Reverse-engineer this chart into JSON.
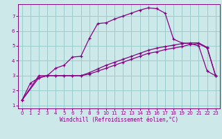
{
  "background_color": "#cce8e8",
  "grid_color": "#99cccc",
  "line_color": "#880088",
  "marker_color": "#880088",
  "xlim": [
    -0.5,
    23.5
  ],
  "ylim": [
    0.8,
    7.8
  ],
  "xticks": [
    0,
    1,
    2,
    3,
    4,
    5,
    6,
    7,
    8,
    9,
    10,
    11,
    12,
    13,
    14,
    15,
    16,
    17,
    18,
    19,
    20,
    21,
    22,
    23
  ],
  "yticks": [
    1,
    2,
    3,
    4,
    5,
    6,
    7
  ],
  "xlabel": "Windchill (Refroidissement éolien,°C)",
  "curve1_x": [
    0,
    1,
    2,
    3,
    4,
    5,
    6,
    7,
    8,
    9,
    10,
    11,
    12,
    13,
    14,
    15,
    16,
    17,
    18,
    19,
    20,
    21,
    22,
    23
  ],
  "curve1_y": [
    1.35,
    2.5,
    2.85,
    3.0,
    3.5,
    3.7,
    4.25,
    4.3,
    5.5,
    6.5,
    6.55,
    6.8,
    7.0,
    7.2,
    7.4,
    7.55,
    7.5,
    7.2,
    5.45,
    5.2,
    5.15,
    5.0,
    3.3,
    3.0
  ],
  "curve2_x": [
    0,
    2,
    3,
    4,
    5,
    6,
    7,
    8,
    9,
    10,
    11,
    12,
    13,
    14,
    15,
    16,
    17,
    18,
    19,
    20,
    21,
    22,
    23
  ],
  "curve2_y": [
    1.35,
    3.0,
    3.0,
    3.0,
    3.0,
    3.0,
    3.0,
    3.2,
    3.45,
    3.7,
    3.9,
    4.1,
    4.3,
    4.5,
    4.7,
    4.85,
    4.95,
    5.05,
    5.15,
    5.2,
    5.2,
    4.9,
    3.0
  ],
  "curve3_x": [
    0,
    2,
    3,
    4,
    5,
    6,
    7,
    8,
    9,
    10,
    11,
    12,
    13,
    14,
    15,
    16,
    17,
    18,
    19,
    20,
    21,
    22,
    23
  ],
  "curve3_y": [
    1.35,
    2.85,
    3.0,
    3.0,
    3.0,
    3.0,
    3.0,
    3.1,
    3.3,
    3.5,
    3.7,
    3.9,
    4.1,
    4.3,
    4.5,
    4.6,
    4.75,
    4.85,
    4.95,
    5.1,
    5.15,
    4.85,
    3.0
  ]
}
